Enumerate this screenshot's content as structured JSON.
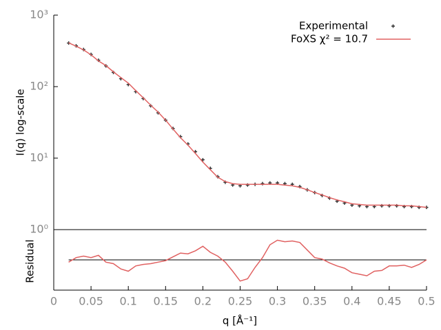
{
  "chart_data": [
    {
      "type": "line",
      "ylabel": "I(q) log-scale",
      "log_y": true,
      "x": [
        0.02,
        0.03,
        0.04,
        0.05,
        0.06,
        0.07,
        0.08,
        0.09,
        0.1,
        0.11,
        0.12,
        0.13,
        0.14,
        0.15,
        0.16,
        0.17,
        0.18,
        0.19,
        0.2,
        0.21,
        0.22,
        0.23,
        0.24,
        0.25,
        0.26,
        0.27,
        0.28,
        0.29,
        0.3,
        0.31,
        0.32,
        0.33,
        0.34,
        0.35,
        0.36,
        0.37,
        0.38,
        0.39,
        0.4,
        0.41,
        0.42,
        0.43,
        0.44,
        0.45,
        0.46,
        0.47,
        0.48,
        0.49,
        0.5
      ],
      "series": [
        {
          "name": "Experimental",
          "color": "#333333",
          "marker": "point",
          "values": [
            407,
            372,
            331,
            282,
            234,
            195,
            158,
            129,
            107,
            85,
            68,
            54,
            43,
            34,
            26,
            20,
            15.8,
            12.3,
            9.5,
            7.2,
            5.5,
            4.6,
            4.2,
            4.1,
            4.2,
            4.3,
            4.4,
            4.5,
            4.5,
            4.4,
            4.3,
            4.0,
            3.6,
            3.3,
            3.0,
            2.75,
            2.5,
            2.35,
            2.2,
            2.15,
            2.1,
            2.1,
            2.15,
            2.15,
            2.15,
            2.1,
            2.1,
            2.05,
            2.05
          ]
        },
        {
          "name": "FoXS χ² = 10.7",
          "color": "#e06060",
          "marker": "line",
          "values": [
            410,
            368,
            326,
            279,
            229,
            197,
            161,
            134,
            112,
            88,
            70,
            55,
            44,
            34,
            25.5,
            19.3,
            15.2,
            11.6,
            8.8,
            6.9,
            5.4,
            4.7,
            4.4,
            4.3,
            4.3,
            4.3,
            4.3,
            4.3,
            4.3,
            4.2,
            4.1,
            3.9,
            3.6,
            3.3,
            3.05,
            2.8,
            2.6,
            2.45,
            2.3,
            2.25,
            2.2,
            2.2,
            2.2,
            2.2,
            2.2,
            2.15,
            2.15,
            2.1,
            2.05
          ]
        }
      ],
      "ylim": [
        1,
        1000
      ],
      "yticks": [
        {
          "value": 1,
          "label": "10⁰"
        },
        {
          "value": 10,
          "label": "10¹"
        },
        {
          "value": 100,
          "label": "10²"
        },
        {
          "value": 1000,
          "label": "10³"
        }
      ],
      "legend": "upper right"
    },
    {
      "type": "line",
      "ylabel": "Residual",
      "xlabel": "q [Å⁻¹]",
      "x": [
        0.02,
        0.03,
        0.04,
        0.05,
        0.06,
        0.07,
        0.08,
        0.09,
        0.1,
        0.11,
        0.12,
        0.13,
        0.14,
        0.15,
        0.16,
        0.17,
        0.18,
        0.19,
        0.2,
        0.21,
        0.22,
        0.23,
        0.24,
        0.25,
        0.26,
        0.27,
        0.28,
        0.29,
        0.3,
        0.31,
        0.32,
        0.33,
        0.34,
        0.35,
        0.36,
        0.37,
        0.38,
        0.39,
        0.4,
        0.41,
        0.42,
        0.43,
        0.44,
        0.45,
        0.46,
        0.47,
        0.48,
        0.49,
        0.5
      ],
      "color": "#e06060",
      "values": [
        -0.3,
        0.3,
        0.5,
        0.3,
        0.6,
        -0.3,
        -0.5,
        -1.2,
        -1.5,
        -0.8,
        -0.6,
        -0.5,
        -0.3,
        -0.1,
        0.4,
        0.9,
        0.8,
        1.2,
        1.8,
        1.0,
        0.5,
        -0.3,
        -1.5,
        -2.8,
        -2.5,
        -1.0,
        0.3,
        2.0,
        2.6,
        2.4,
        2.5,
        2.3,
        1.3,
        0.3,
        0.1,
        -0.4,
        -0.8,
        -1.1,
        -1.7,
        -1.9,
        -2.1,
        -1.5,
        -1.4,
        -0.8,
        -0.8,
        -0.7,
        -1.0,
        -0.6,
        0.0
      ],
      "hline": 0,
      "ylim": [
        -4,
        4
      ],
      "xlim": [
        0,
        0.5
      ],
      "xticks": [
        0,
        0.05,
        0.1,
        0.15,
        0.2,
        0.25,
        0.3,
        0.35,
        0.4,
        0.45,
        0.5
      ]
    }
  ]
}
